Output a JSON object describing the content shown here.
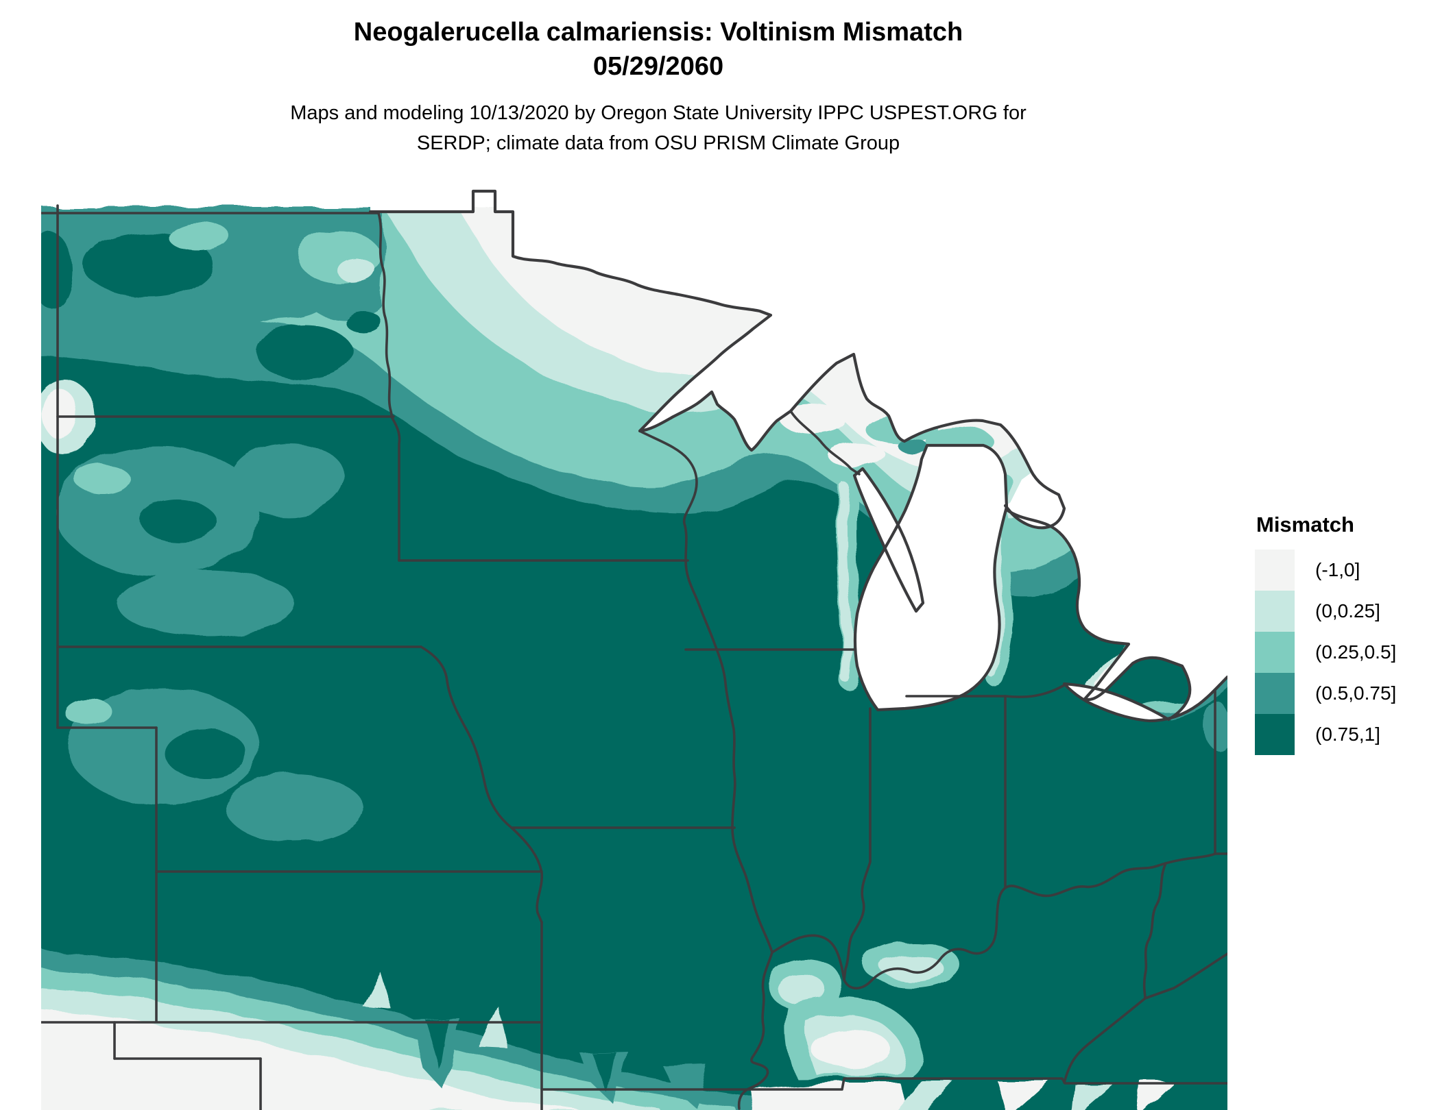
{
  "title": {
    "line1": "Neogalerucella calmariensis: Voltinism Mismatch",
    "line2": "05/29/2060"
  },
  "subtitle": {
    "line1": "Maps and modeling 10/13/2020 by Oregon State University IPPC USPEST.ORG for",
    "line2": "SERDP; climate data from OSU PRISM Climate Group"
  },
  "legend": {
    "title": "Mismatch",
    "items": [
      {
        "label": "(-1,0]",
        "color": "#f3f4f3"
      },
      {
        "label": "(0,0.25]",
        "color": "#c7e8e1"
      },
      {
        "label": "(0.25,0.5]",
        "color": "#7fcdbf"
      },
      {
        "label": "(0.5,0.75]",
        "color": "#389690"
      },
      {
        "label": "(0.75,1]",
        "color": "#02695f"
      }
    ]
  },
  "map": {
    "border_color": "#3b3b3d",
    "water_color": "#ffffff"
  },
  "chart_data": {
    "type": "choropleth_map",
    "title": "Neogalerucella calmariensis: Voltinism Mismatch",
    "date_shown": "05/29/2060",
    "legend_title": "Mismatch",
    "classes": [
      {
        "interval": "(-1,0]",
        "color": "#f3f4f3"
      },
      {
        "interval": "(0,0.25]",
        "color": "#c7e8e1"
      },
      {
        "interval": "(0.25,0.5]",
        "color": "#7fcdbf"
      },
      {
        "interval": "(0.5,0.75]",
        "color": "#389690"
      },
      {
        "interval": "(0.75,1]",
        "color": "#02695f"
      }
    ],
    "region": "Upper Midwest / Great Lakes, USA (ND, SD, NE, KS, OK, MN, IA, MO, WI, IL, MI, IN, OH, KY, TN, WV edges)",
    "pattern_summary": "High mismatch (0.75,1] across the central corn belt (IA, IL, IN, OH, MO, KS, NE, KY, southern MN/WI/MI); low/negative mismatch (-1,0] to (0,0.25] in northern Minnesota, northern Wisconsin, upper Michigan and along the southern map edge (OK, southern KS/MO, TN); Great Lakes and Canada shown as white no-data",
    "visible_features": [
      "state boundaries",
      "Lake Superior",
      "Lake Michigan",
      "Green Bay",
      "Lake Huron",
      "Lake Erie",
      "Mississippi River",
      "Missouri River",
      "Ohio River"
    ]
  }
}
